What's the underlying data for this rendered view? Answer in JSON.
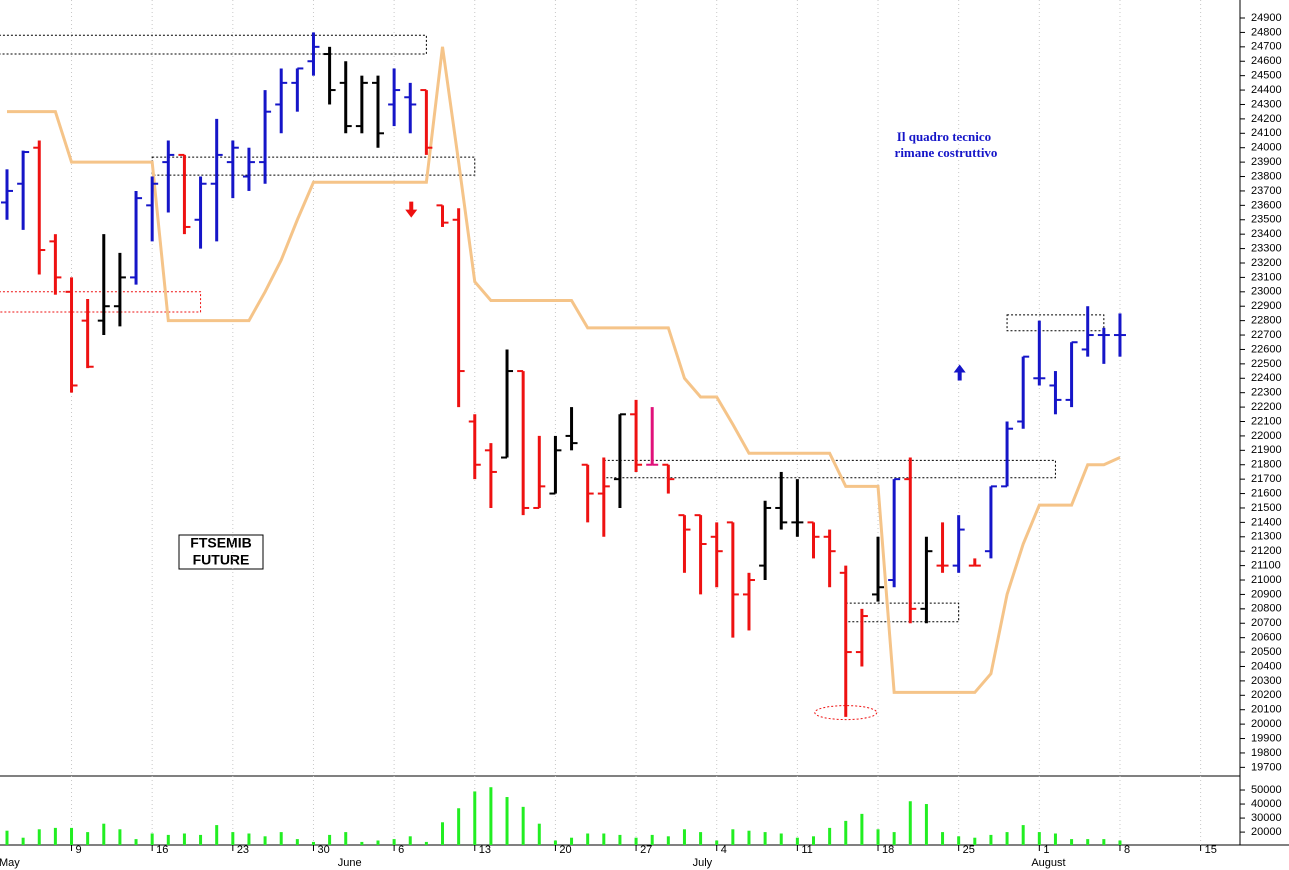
{
  "chart_data": {
    "type": "ohlc",
    "title_lines": [
      "FTSEMIB",
      "FUTURE"
    ],
    "note_lines": [
      "Il quadro tecnico",
      "rimane costruttivo"
    ],
    "x_labels": [
      {
        "index": 4,
        "label": "9"
      },
      {
        "index": 9,
        "label": "16"
      },
      {
        "index": 14,
        "label": "23"
      },
      {
        "index": 19,
        "label": "30"
      },
      {
        "index": 24,
        "label": "6"
      },
      {
        "index": 29,
        "label": "13"
      },
      {
        "index": 34,
        "label": "20"
      },
      {
        "index": 39,
        "label": "27"
      },
      {
        "index": 44,
        "label": "4"
      },
      {
        "index": 49,
        "label": "11"
      },
      {
        "index": 54,
        "label": "18"
      },
      {
        "index": 59,
        "label": "25"
      },
      {
        "index": 64,
        "label": "1"
      },
      {
        "index": 69,
        "label": "8"
      },
      {
        "index": 74,
        "label": "15"
      }
    ],
    "month_labels": [
      {
        "index": 0,
        "label": "May"
      },
      {
        "index": 21,
        "label": "June"
      },
      {
        "index": 43,
        "label": "July"
      },
      {
        "index": 64,
        "label": "August"
      }
    ],
    "open": [
      23620,
      23750,
      24000,
      23350,
      23000,
      22800,
      22800,
      22900,
      23100,
      23600,
      23900,
      23950,
      23500,
      23750,
      23900,
      23800,
      23900,
      24300,
      24450,
      24600,
      24650,
      24450,
      24150,
      24450,
      24300,
      24350,
      24400,
      23600,
      23500,
      22100,
      21900,
      21850,
      22450,
      21500,
      21600,
      22000,
      21800,
      21600,
      21700,
      22150,
      21800,
      21800,
      21450,
      21450,
      21300,
      21400,
      20900,
      21100,
      21500,
      21400,
      21400,
      21300,
      21050,
      20500,
      20900,
      21000,
      21700,
      20800,
      21100,
      21100,
      21100,
      21200,
      21650,
      22100,
      22400,
      22350,
      22250,
      22600,
      22700,
      22700
    ],
    "high": [
      23850,
      23980,
      24050,
      23400,
      23100,
      22950,
      23400,
      23270,
      23700,
      23800,
      24050,
      23950,
      23800,
      24200,
      24050,
      24000,
      24400,
      24550,
      24550,
      24800,
      24700,
      24600,
      24500,
      24500,
      24550,
      24450,
      24400,
      23600,
      23580,
      22150,
      21950,
      22600,
      22450,
      22000,
      22000,
      22200,
      21800,
      21850,
      22150,
      22250,
      22200,
      21800,
      21450,
      21450,
      21400,
      21400,
      21050,
      21550,
      21750,
      21700,
      21400,
      21350,
      21100,
      20800,
      21300,
      21700,
      21850,
      21300,
      21400,
      21450,
      21150,
      21650,
      22100,
      22550,
      22800,
      22450,
      22650,
      22900,
      22750,
      22850
    ],
    "low": [
      23500,
      23430,
      23120,
      22980,
      22300,
      22470,
      22700,
      22760,
      23050,
      23350,
      23550,
      23400,
      23300,
      23350,
      23650,
      23700,
      23750,
      24100,
      24250,
      24500,
      24300,
      24100,
      24100,
      24000,
      24150,
      24100,
      23950,
      23450,
      22200,
      21700,
      21500,
      21850,
      21450,
      21500,
      21600,
      21900,
      21400,
      21300,
      21500,
      21750,
      21800,
      21600,
      21050,
      20900,
      20950,
      20600,
      20650,
      21000,
      21350,
      21300,
      21150,
      20950,
      20050,
      20400,
      20850,
      20950,
      20700,
      20700,
      21050,
      21050,
      21100,
      21150,
      21650,
      22050,
      22350,
      22150,
      22200,
      22550,
      22500,
      22550
    ],
    "close": [
      23700,
      23970,
      23290,
      23100,
      22350,
      22480,
      22900,
      23100,
      23650,
      23750,
      23950,
      23450,
      23750,
      23950,
      24000,
      23900,
      24250,
      24450,
      24550,
      24700,
      24400,
      24150,
      24450,
      24100,
      24400,
      24300,
      24000,
      23480,
      22450,
      21800,
      21750,
      22450,
      21500,
      21650,
      21900,
      21950,
      21600,
      21650,
      22150,
      21800,
      21800,
      21700,
      21350,
      21250,
      21200,
      20900,
      21000,
      21500,
      21400,
      21400,
      21300,
      21200,
      20500,
      20750,
      20950,
      21700,
      20800,
      21200,
      21100,
      21350,
      21100,
      21650,
      22050,
      22550,
      22400,
      22250,
      22650,
      22700,
      22700,
      22700
    ],
    "bar_colors": [
      "blue",
      "blue",
      "red",
      "red",
      "red",
      "red",
      "black",
      "black",
      "blue",
      "blue",
      "blue",
      "red",
      "blue",
      "blue",
      "blue",
      "blue",
      "blue",
      "blue",
      "blue",
      "blue",
      "black",
      "black",
      "black",
      "black",
      "blue",
      "blue",
      "red",
      "red",
      "red",
      "red",
      "red",
      "black",
      "red",
      "red",
      "black",
      "black",
      "red",
      "red",
      "black",
      "red",
      "magenta",
      "red",
      "red",
      "red",
      "red",
      "red",
      "red",
      "black",
      "black",
      "black",
      "red",
      "red",
      "red",
      "red",
      "black",
      "blue",
      "red",
      "black",
      "red",
      "blue",
      "red",
      "blue",
      "blue",
      "blue",
      "blue",
      "blue",
      "blue",
      "blue",
      "blue",
      "blue"
    ],
    "palette": {
      "blue": "#1515c8",
      "red": "#ee1111",
      "black": "#000000",
      "magenta": "#e0117a"
    },
    "stop_line": {
      "color": "#f5c489",
      "values": [
        24250,
        24250,
        24250,
        24250,
        23900,
        23900,
        23900,
        23900,
        23900,
        23900,
        22800,
        22800,
        22800,
        22800,
        22800,
        22800,
        23000,
        23220,
        23500,
        23760,
        23760,
        23760,
        23760,
        23760,
        23760,
        23760,
        23760,
        24700,
        23900,
        23070,
        22940,
        22940,
        22940,
        22940,
        22940,
        22940,
        22750,
        22750,
        22750,
        22750,
        22750,
        22750,
        22400,
        22270,
        22270,
        22080,
        21880,
        21880,
        21880,
        21880,
        21880,
        21880,
        21650,
        21650,
        21650,
        20220,
        20220,
        20220,
        20220,
        20220,
        20220,
        20350,
        20900,
        21250,
        21520,
        21520,
        21520,
        21800,
        21800,
        21850
      ]
    },
    "ylim": [
      19640,
      25025
    ],
    "yticks": [
      19700,
      19800,
      19900,
      20000,
      20100,
      20200,
      20300,
      20400,
      20500,
      20600,
      20700,
      20800,
      20900,
      21000,
      21100,
      21200,
      21300,
      21400,
      21500,
      21600,
      21700,
      21800,
      21900,
      22000,
      22100,
      22200,
      22300,
      22400,
      22500,
      22600,
      22700,
      22800,
      22900,
      23000,
      23100,
      23200,
      23300,
      23400,
      23500,
      23600,
      23700,
      23800,
      23900,
      24000,
      24100,
      24200,
      24300,
      24400,
      24500,
      24600,
      24700,
      24800,
      24900
    ],
    "volume": {
      "color": "#22ee22",
      "values": [
        21000,
        16000,
        22000,
        23000,
        23000,
        20000,
        26000,
        22000,
        15000,
        19000,
        18000,
        19000,
        18000,
        25000,
        20000,
        19000,
        17000,
        20000,
        15000,
        13000,
        18000,
        20000,
        13000,
        14000,
        15000,
        17000,
        13000,
        27000,
        37000,
        49000,
        52000,
        45000,
        38000,
        26000,
        14000,
        16000,
        19000,
        19000,
        18000,
        16000,
        18000,
        17000,
        22000,
        20000,
        14000,
        22000,
        21000,
        20000,
        19000,
        16000,
        17000,
        23000,
        28000,
        33000,
        22000,
        20000,
        42000,
        40000,
        20000,
        17000,
        16000,
        18000,
        20000,
        25000,
        20000,
        19000,
        15000,
        15000,
        15000,
        14000
      ],
      "ylim": [
        10800,
        60000
      ],
      "yticks": [
        20000,
        30000,
        40000,
        50000
      ]
    },
    "zones": [
      {
        "from": -0.5,
        "to": 26,
        "low": 24650,
        "high": 24780,
        "color": "#000000"
      },
      {
        "from": 9,
        "to": 29,
        "low": 23810,
        "high": 23935,
        "color": "#000000"
      },
      {
        "from": -0.5,
        "to": 12,
        "low": 22860,
        "high": 23000,
        "color": "#ee1111"
      },
      {
        "from": 37,
        "to": 65,
        "low": 21710,
        "high": 21830,
        "color": "#000000"
      },
      {
        "from": 52,
        "to": 59,
        "low": 20710,
        "high": 20840,
        "color": "#000000"
      },
      {
        "from": 62,
        "to": 68,
        "low": 22730,
        "high": 22840,
        "color": "#000000"
      }
    ],
    "ellipse": {
      "index": 52,
      "value": 20080,
      "color": "#ee1111"
    },
    "arrows": [
      {
        "index": 25,
        "value": 23570,
        "direction": "down",
        "color": "#ee1111"
      },
      {
        "index": 59,
        "value": 22440,
        "direction": "up",
        "color": "#1515c8"
      }
    ],
    "grid_x": true
  }
}
